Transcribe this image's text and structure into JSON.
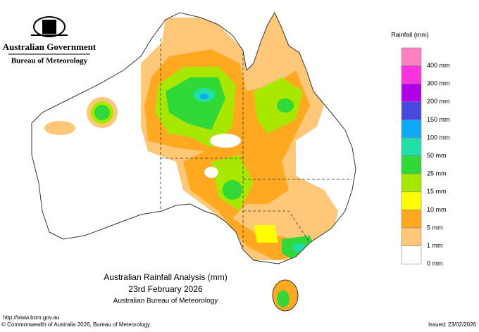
{
  "header": {
    "government": "Australian Government",
    "agency": "Bureau of Meteorology"
  },
  "legend": {
    "title": "Rainfall (mm)",
    "items": [
      {
        "label": "400 mm",
        "color": "#ff80c0"
      },
      {
        "label": "300 mm",
        "color": "#ff33dd"
      },
      {
        "label": "200 mm",
        "color": "#b000e8"
      },
      {
        "label": "150 mm",
        "color": "#4848e0"
      },
      {
        "label": "100 mm",
        "color": "#10a8f8"
      },
      {
        "label": "50 mm",
        "color": "#20e0a8"
      },
      {
        "label": "25 mm",
        "color": "#30d838"
      },
      {
        "label": "15 mm",
        "color": "#a8e800"
      },
      {
        "label": "10 mm",
        "color": "#ffff00"
      },
      {
        "label": "5 mm",
        "color": "#ffa820"
      },
      {
        "label": "1 mm",
        "color": "#ffc878"
      },
      {
        "label": "0 mm",
        "color": "#ffffff"
      }
    ]
  },
  "title": {
    "lines": [
      "Australian Rainfall Analysis (mm)",
      "23rd February 2026",
      "Australian Bureau of Meteorology"
    ]
  },
  "footer": {
    "url": "http://www.bom.gov.au",
    "copyright": "© Commonwealth of Australia 2026, Bureau of Meteorology",
    "issued": "Issued: 23/02/2026"
  }
}
